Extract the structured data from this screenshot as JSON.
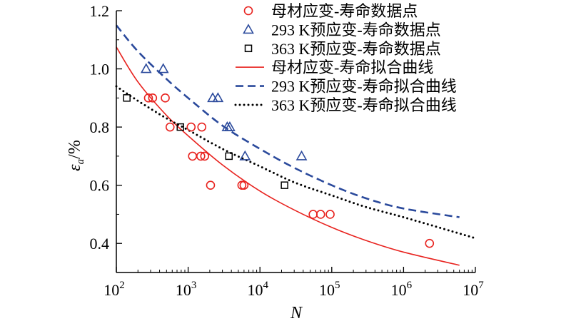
{
  "chart_data": {
    "type": "scatter",
    "xscale": "log",
    "xlim": [
      100,
      10000000
    ],
    "ylim": [
      0.3,
      1.2
    ],
    "xticks": [
      100,
      1000,
      10000,
      100000,
      1000000,
      10000000
    ],
    "xtick_labels": [
      {
        "base": "10",
        "exp": "2"
      },
      {
        "base": "10",
        "exp": "3"
      },
      {
        "base": "10",
        "exp": "4"
      },
      {
        "base": "10",
        "exp": "5"
      },
      {
        "base": "10",
        "exp": "6"
      },
      {
        "base": "10",
        "exp": "7"
      }
    ],
    "yticks": [
      0.4,
      0.6,
      0.8,
      1.0,
      1.2
    ],
    "ytick_labels": [
      "0.4",
      "0.6",
      "0.8",
      "1.0",
      "1.2"
    ],
    "xlabel": "N",
    "ylabel": {
      "main": "ε",
      "sub": "a",
      "rest": "/%"
    },
    "legend_position": "top-right",
    "series": [
      {
        "name": "母材应变-寿命数据点",
        "kind": "points",
        "marker": "circle",
        "color": "#e8231f",
        "points": [
          [
            280,
            0.9
          ],
          [
            320,
            0.9
          ],
          [
            480,
            0.9
          ],
          [
            560,
            0.8
          ],
          [
            1100,
            0.8
          ],
          [
            1550,
            0.8
          ],
          [
            1150,
            0.7
          ],
          [
            1500,
            0.7
          ],
          [
            1700,
            0.7
          ],
          [
            2050,
            0.6
          ],
          [
            5600,
            0.6
          ],
          [
            6000,
            0.6
          ],
          [
            55000,
            0.5
          ],
          [
            70000,
            0.5
          ],
          [
            95000,
            0.5
          ],
          [
            2300000,
            0.4
          ]
        ]
      },
      {
        "name": "293 K预应变-寿命数据点",
        "kind": "points",
        "marker": "triangle",
        "color": "#2b4a9c",
        "points": [
          [
            260,
            1.0
          ],
          [
            450,
            1.0
          ],
          [
            2200,
            0.9
          ],
          [
            2600,
            0.9
          ],
          [
            3500,
            0.8
          ],
          [
            3800,
            0.8
          ],
          [
            6200,
            0.7
          ],
          [
            38000,
            0.7
          ]
        ]
      },
      {
        "name": "363 K预应变-寿命数据点",
        "kind": "points",
        "marker": "square",
        "color": "#000000",
        "points": [
          [
            140,
            0.9
          ],
          [
            780,
            0.8
          ],
          [
            3700,
            0.7
          ],
          [
            22000,
            0.6
          ]
        ]
      },
      {
        "name": "母材应变-寿命拟合曲线",
        "kind": "line",
        "style": "solid",
        "color": "#e8231f",
        "points": [
          [
            100,
            1.075
          ],
          [
            200,
            0.955
          ],
          [
            500,
            0.84
          ],
          [
            1000,
            0.77
          ],
          [
            3000,
            0.67
          ],
          [
            10000,
            0.58
          ],
          [
            30000,
            0.515
          ],
          [
            100000,
            0.455
          ],
          [
            300000,
            0.41
          ],
          [
            1000000,
            0.37
          ],
          [
            6000000,
            0.325
          ]
        ]
      },
      {
        "name": "293 K预应变-寿命拟合曲线",
        "kind": "line",
        "style": "dashed",
        "color": "#2b4a9c",
        "points": [
          [
            100,
            1.15
          ],
          [
            200,
            1.06
          ],
          [
            500,
            0.965
          ],
          [
            1000,
            0.9
          ],
          [
            3000,
            0.805
          ],
          [
            10000,
            0.725
          ],
          [
            30000,
            0.66
          ],
          [
            100000,
            0.6
          ],
          [
            300000,
            0.555
          ],
          [
            1000000,
            0.52
          ],
          [
            6000000,
            0.49
          ]
        ]
      },
      {
        "name": "363 K预应变-寿命拟合曲线",
        "kind": "line",
        "style": "dotted",
        "color": "#000000",
        "points": [
          [
            100,
            0.94
          ],
          [
            200,
            0.89
          ],
          [
            500,
            0.83
          ],
          [
            1000,
            0.79
          ],
          [
            3000,
            0.725
          ],
          [
            10000,
            0.665
          ],
          [
            30000,
            0.61
          ],
          [
            100000,
            0.565
          ],
          [
            300000,
            0.525
          ],
          [
            1000000,
            0.49
          ],
          [
            10000000,
            0.418
          ]
        ]
      }
    ]
  }
}
